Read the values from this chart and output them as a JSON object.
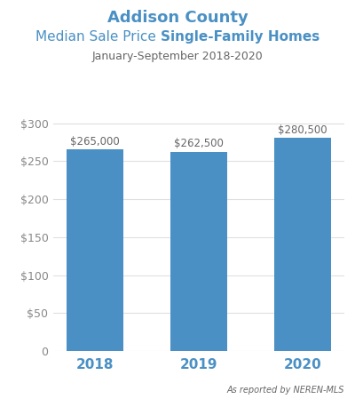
{
  "title_line1": "Addison County",
  "title_line2_normal": "Median Sale Price ",
  "title_line2_bold": "Single-Family Homes",
  "subtitle": "January-September 2018-2020",
  "categories": [
    "2018",
    "2019",
    "2020"
  ],
  "values": [
    265000,
    262500,
    280500
  ],
  "bar_labels": [
    "$265,000",
    "$262,500",
    "$280,500"
  ],
  "bar_color": "#4A90C4",
  "title_color": "#4A90C4",
  "subtitle_color": "#666666",
  "xlabel_color": "#4A90C4",
  "ylabel_tick_color": "#888888",
  "annotation_color": "#666666",
  "footnote": "As reported by NEREN-MLS",
  "ylim": [
    0,
    315000
  ],
  "yticks": [
    0,
    50000,
    100000,
    150000,
    200000,
    250000,
    300000
  ],
  "background_color": "#FFFFFF",
  "plot_bg_color": "#FFFFFF"
}
